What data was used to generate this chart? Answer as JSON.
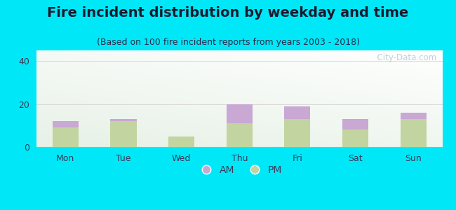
{
  "title": "Fire incident distribution by weekday and time",
  "subtitle": "(Based on 100 fire incident reports from years 2003 - 2018)",
  "categories": [
    "Mon",
    "Tue",
    "Wed",
    "Thu",
    "Fri",
    "Sat",
    "Sun"
  ],
  "pm_values": [
    9,
    12,
    5,
    11,
    13,
    8,
    13
  ],
  "am_values": [
    3,
    1,
    0,
    9,
    6,
    5,
    3
  ],
  "am_color": "#c9a8d4",
  "pm_color": "#c2d4a0",
  "background_outer": "#00e8f8",
  "ylim": [
    0,
    45
  ],
  "yticks": [
    0,
    20,
    40
  ],
  "grid_color": "#d8d8d8",
  "title_fontsize": 14,
  "subtitle_fontsize": 9,
  "watermark": "  City-Data.com",
  "bar_width": 0.45,
  "title_color": "#1a1a2e",
  "subtitle_color": "#2a2a4a",
  "tick_color": "#3a3a5a",
  "legend_fontsize": 10
}
